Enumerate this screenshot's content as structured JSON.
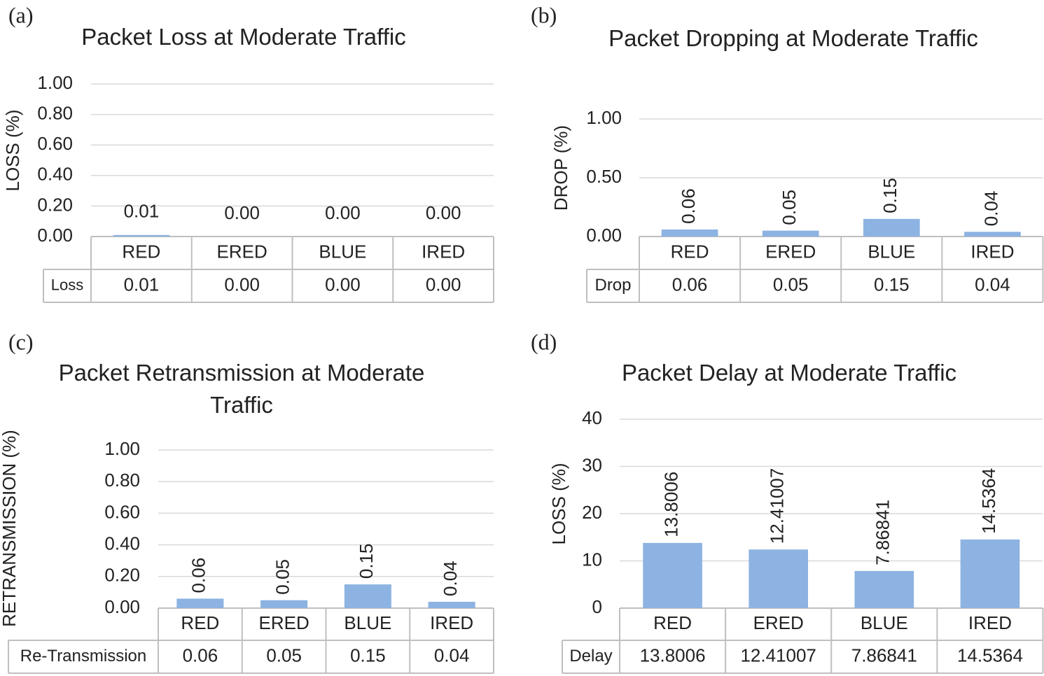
{
  "chart_data": [
    {
      "type": "bar",
      "panel": "(a)",
      "title": "Packet Loss at Moderate Traffic",
      "ylabel": "LOSS (%)",
      "categories": [
        "RED",
        "ERED",
        "BLUE",
        "IRED"
      ],
      "values": [
        0.01,
        0,
        0,
        0
      ],
      "value_labels": [
        "0.01",
        "0.00",
        "0.00",
        "0.00"
      ],
      "color": "#8db3e2",
      "ylim": [
        0,
        1
      ],
      "yticks": [
        {
          "value": 0,
          "label": "0.00"
        },
        {
          "value": 0.2,
          "label": "0.20"
        },
        {
          "value": 0.4,
          "label": "0.40"
        },
        {
          "value": 0.6,
          "label": "0.60"
        },
        {
          "value": 0.8,
          "label": "0.80"
        },
        {
          "value": 1,
          "label": "1.00"
        }
      ],
      "grid": true,
      "table_label": "Loss",
      "rotate_labels": false
    },
    {
      "type": "bar",
      "panel": "(b)",
      "title": "Packet Dropping at Moderate Traffic",
      "ylabel": "DROP (%)",
      "categories": [
        "RED",
        "ERED",
        "BLUE",
        "IRED"
      ],
      "values": [
        0.06,
        0.05,
        0.15,
        0.04
      ],
      "color": "#8db3e2",
      "ylim": [
        0,
        1
      ],
      "yticks": [
        {
          "value": 0,
          "label": "0.00"
        },
        {
          "value": 0.5,
          "label": "0.50"
        },
        {
          "value": 1,
          "label": "1.00"
        }
      ],
      "grid": true,
      "table_label": "Drop",
      "rotate_labels": true
    },
    {
      "type": "bar",
      "panel": "(c)",
      "title": "Packet Retransmission at Moderate Traffic",
      "ylabel": "RETRANSMISSION (%)",
      "categories": [
        "RED",
        "ERED",
        "BLUE",
        "IRED"
      ],
      "values": [
        0.06,
        0.05,
        0.15,
        0.04
      ],
      "color": "#8db3e2",
      "ylim": [
        0,
        1
      ],
      "yticks": [
        {
          "value": 0,
          "label": "0.00"
        },
        {
          "value": 0.2,
          "label": "0.20"
        },
        {
          "value": 0.4,
          "label": "0.40"
        },
        {
          "value": 0.6,
          "label": "0.60"
        },
        {
          "value": 0.8,
          "label": "0.80"
        },
        {
          "value": 1,
          "label": "1.00"
        }
      ],
      "grid": true,
      "table_label": "Re-Transmission",
      "rotate_labels": true
    },
    {
      "type": "bar",
      "panel": "(d)",
      "title": "Packet Delay at Moderate Traffic",
      "ylabel": "LOSS (%)",
      "categories": [
        "RED",
        "ERED",
        "BLUE",
        "IRED"
      ],
      "values": [
        13.8006,
        12.41007,
        7.86841,
        14.5364
      ],
      "color": "#8db3e2",
      "ylim": [
        0,
        40
      ],
      "yticks": [
        0,
        10,
        20,
        30,
        40
      ],
      "grid": true,
      "table_label": "Delay",
      "rotate_labels": true
    }
  ]
}
